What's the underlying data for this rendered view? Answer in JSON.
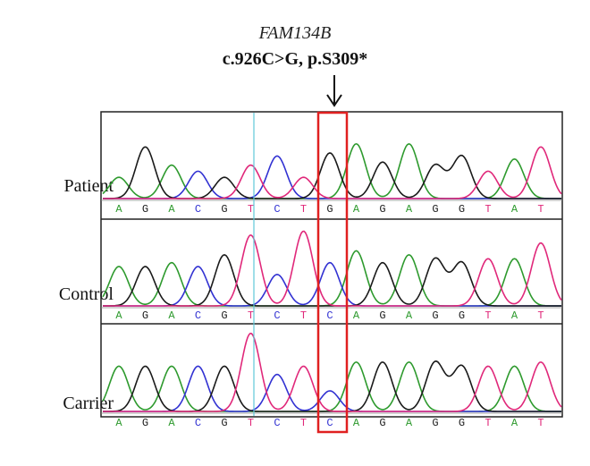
{
  "header": {
    "gene": "FAM134B",
    "mutation": "c.926C>G, p.S309*"
  },
  "colors": {
    "A": "#2e9a2e",
    "G": "#1a1a1a",
    "C": "#3232d2",
    "T": "#e0287a",
    "highlight": "#e02020",
    "cursor": "#5fc8d8"
  },
  "rows": [
    {
      "label": "Patient",
      "bases": [
        "A",
        "G",
        "A",
        "C",
        "G",
        "T",
        "C",
        "T",
        "G",
        "A",
        "G",
        "A",
        "G",
        "G",
        "T",
        "A",
        "T"
      ],
      "peaks": [
        0.35,
        0.85,
        0.55,
        0.45,
        0.35,
        0.55,
        0.7,
        0.35,
        0.75,
        0.9,
        0.6,
        0.9,
        0.55,
        0.7,
        0.45,
        0.65,
        0.85
      ]
    },
    {
      "label": "Control",
      "bases": [
        "A",
        "G",
        "A",
        "C",
        "G",
        "T",
        "C",
        "T",
        "C",
        "A",
        "G",
        "A",
        "G",
        "G",
        "T",
        "A",
        "T"
      ],
      "peaks": [
        0.5,
        0.5,
        0.55,
        0.5,
        0.65,
        0.9,
        0.4,
        0.95,
        0.55,
        0.7,
        0.55,
        0.65,
        0.6,
        0.55,
        0.6,
        0.6,
        0.8
      ]
    },
    {
      "label": "Carrier",
      "bases": [
        "A",
        "G",
        "A",
        "C",
        "G",
        "T",
        "C",
        "T",
        "C",
        "A",
        "G",
        "A",
        "G",
        "G",
        "T",
        "A",
        "T"
      ],
      "peaks": [
        0.55,
        0.55,
        0.55,
        0.55,
        0.55,
        0.95,
        0.45,
        0.55,
        0.25,
        0.6,
        0.6,
        0.6,
        0.6,
        0.55,
        0.55,
        0.55,
        0.6
      ]
    }
  ]
}
